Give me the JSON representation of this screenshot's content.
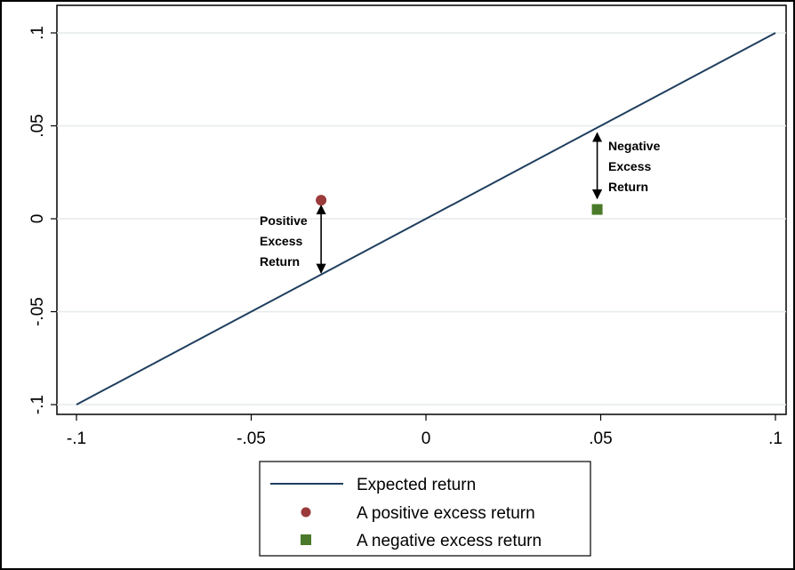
{
  "chart_data": {
    "type": "scatter",
    "xlim": [
      -0.1,
      0.1
    ],
    "ylim": [
      -0.1,
      0.1
    ],
    "x_ticks": [
      {
        "value": -0.1,
        "label": "-.1"
      },
      {
        "value": -0.05,
        "label": "-.05"
      },
      {
        "value": 0,
        "label": "0"
      },
      {
        "value": 0.05,
        "label": ".05"
      },
      {
        "value": 0.1,
        "label": ".1"
      }
    ],
    "y_ticks": [
      {
        "value": -0.1,
        "label": "-.1"
      },
      {
        "value": -0.05,
        "label": "-.05"
      },
      {
        "value": 0,
        "label": "0"
      },
      {
        "value": 0.05,
        "label": ".05"
      },
      {
        "value": 0.1,
        "label": ".1"
      }
    ],
    "grid": "horizontal",
    "legend_position": "bottom",
    "series": [
      {
        "name": "Expected return",
        "kind": "line",
        "color": "#1f3f5f",
        "x": [
          -0.1,
          0.1
        ],
        "y": [
          -0.1,
          0.1
        ]
      },
      {
        "name": "A positive excess return",
        "kind": "point",
        "marker": "circle",
        "color": "#9b3a3a",
        "x": [
          -0.03
        ],
        "y": [
          0.01
        ]
      },
      {
        "name": "A negative excess return",
        "kind": "point",
        "marker": "square",
        "color": "#4a7a2a",
        "x": [
          0.049
        ],
        "y": [
          0.005
        ]
      }
    ],
    "annotations": [
      {
        "lines": [
          "Positive",
          "Excess",
          "Return"
        ],
        "arrow_x": -0.03,
        "arrow_y": [
          0.01,
          -0.03
        ]
      },
      {
        "lines": [
          "Negative",
          "Excess",
          "Return"
        ],
        "arrow_x": 0.049,
        "arrow_y": [
          0.049,
          0.01
        ]
      }
    ]
  }
}
